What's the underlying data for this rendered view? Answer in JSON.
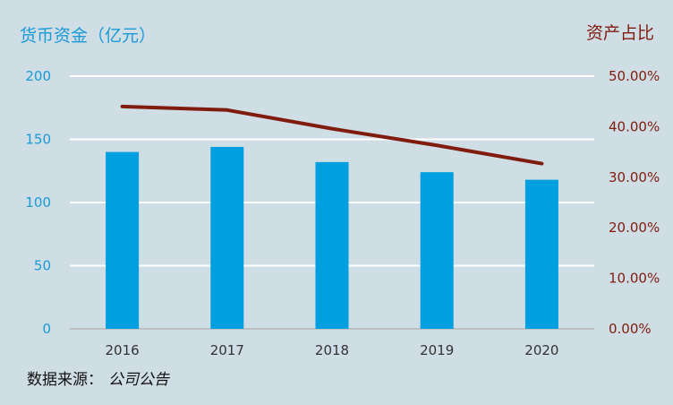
{
  "chart_data": {
    "type": "bar+line",
    "categories": [
      "2016",
      "2017",
      "2018",
      "2019",
      "2020"
    ],
    "series": [
      {
        "axis": "left",
        "type": "bar",
        "values": [
          140,
          144,
          132,
          124,
          118
        ],
        "color": "#009fdf"
      },
      {
        "axis": "right",
        "type": "line",
        "values": [
          0.44,
          0.433,
          0.396,
          0.363,
          0.327
        ],
        "color": "#7f1c0e"
      }
    ],
    "left_axis": {
      "label": "货币资金（亿元）",
      "ylim": [
        0,
        200
      ],
      "ticks": [
        "0",
        "50",
        "100",
        "150",
        "200"
      ],
      "color": "#1a9ad6"
    },
    "right_axis": {
      "label": "资产占比",
      "ylim": [
        0,
        0.5
      ],
      "ticks": [
        "0.00%",
        "10.00%",
        "20.00%",
        "30.00%",
        "40.00%",
        "50.00%"
      ],
      "color": "#7f1c0e"
    },
    "grid": true,
    "source_label": "数据来源：",
    "source_value": "公司公告"
  }
}
